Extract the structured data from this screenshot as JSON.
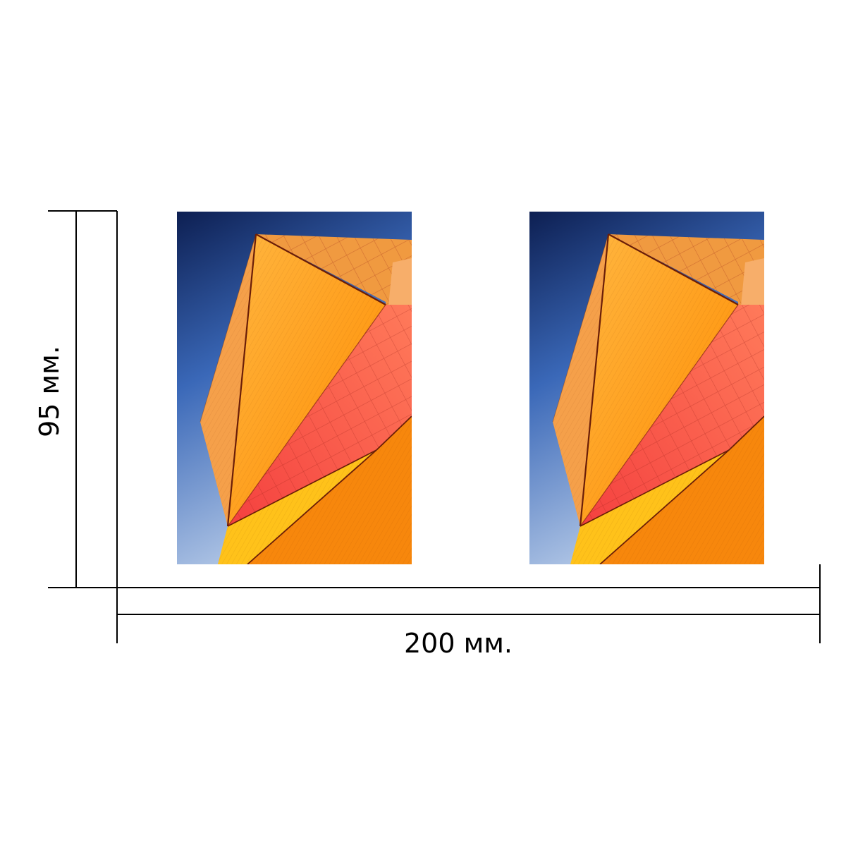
{
  "dimensions": {
    "width_label": "200 мм.",
    "height_label": "95 мм."
  },
  "panels": [
    {
      "name": "photo-panel-left"
    },
    {
      "name": "photo-panel-right"
    }
  ],
  "colors": {
    "line": "#000000",
    "sky_top": "#0d1f52",
    "sky_mid": "#3a68b8",
    "sky_light": "#b7cbe8",
    "facet_pale_orange": "#f5a04a",
    "facet_orange": "#ff9a10",
    "facet_deep_orange": "#f7870c",
    "facet_red": "#f0524a",
    "facet_yellow": "#ffc21a",
    "facet_top": "#f09a40"
  }
}
